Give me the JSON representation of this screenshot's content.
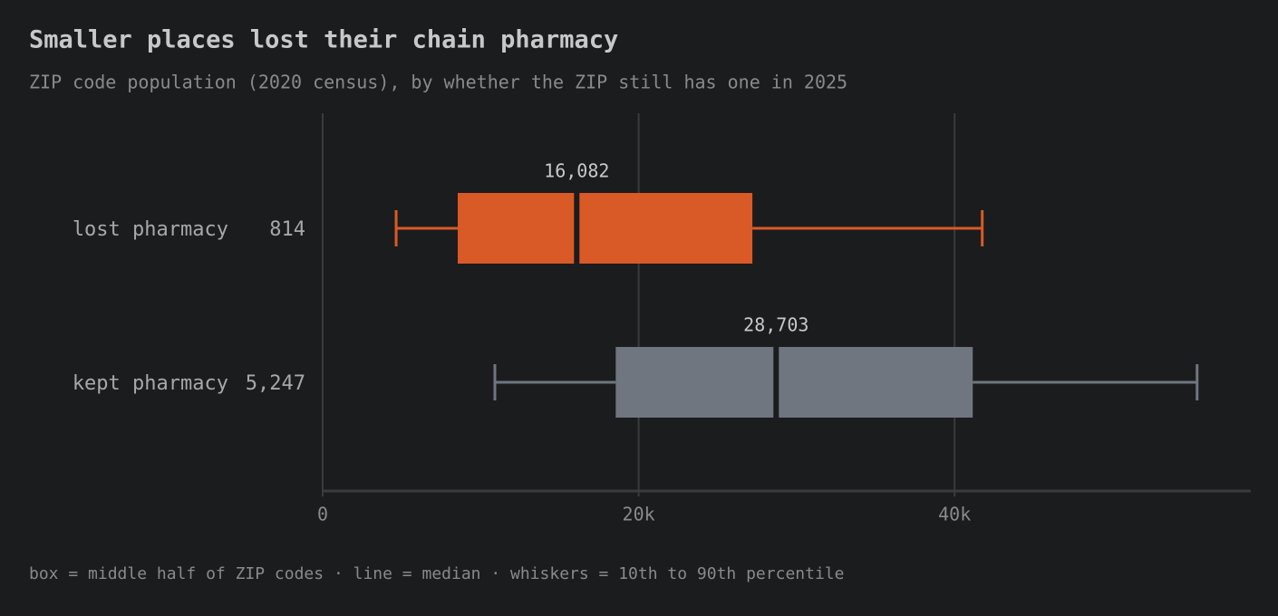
{
  "chart_data": {
    "type": "boxplot",
    "title": "Smaller places lost their chain pharmacy",
    "subtitle": "ZIP code population (2020 census), by whether the ZIP still has one in 2025",
    "note": "box = middle half of ZIP codes · line = median · whiskers = 10th to 90th percentile",
    "xlim": [
      0,
      58750
    ],
    "xticks": [
      0,
      {
        "value": 20000,
        "label": "20k"
      },
      {
        "value": 40000,
        "label": "40k"
      }
    ],
    "grid": true,
    "series": [
      {
        "name": "lost pharmacy",
        "color": "#d95a27",
        "count": 814,
        "whisker_low": 4650,
        "q1": 8550,
        "median": 16082,
        "median_label": "16,082",
        "q3": 27200,
        "whisker_high": 41750
      },
      {
        "name": "kept pharmacy",
        "color": "#6f7680",
        "count": 5247,
        "count_label": "5,247",
        "whisker_low": 10900,
        "q1": 18550,
        "median": 28703,
        "median_label": "28,703",
        "q3": 41150,
        "whisker_high": 55350
      }
    ]
  }
}
